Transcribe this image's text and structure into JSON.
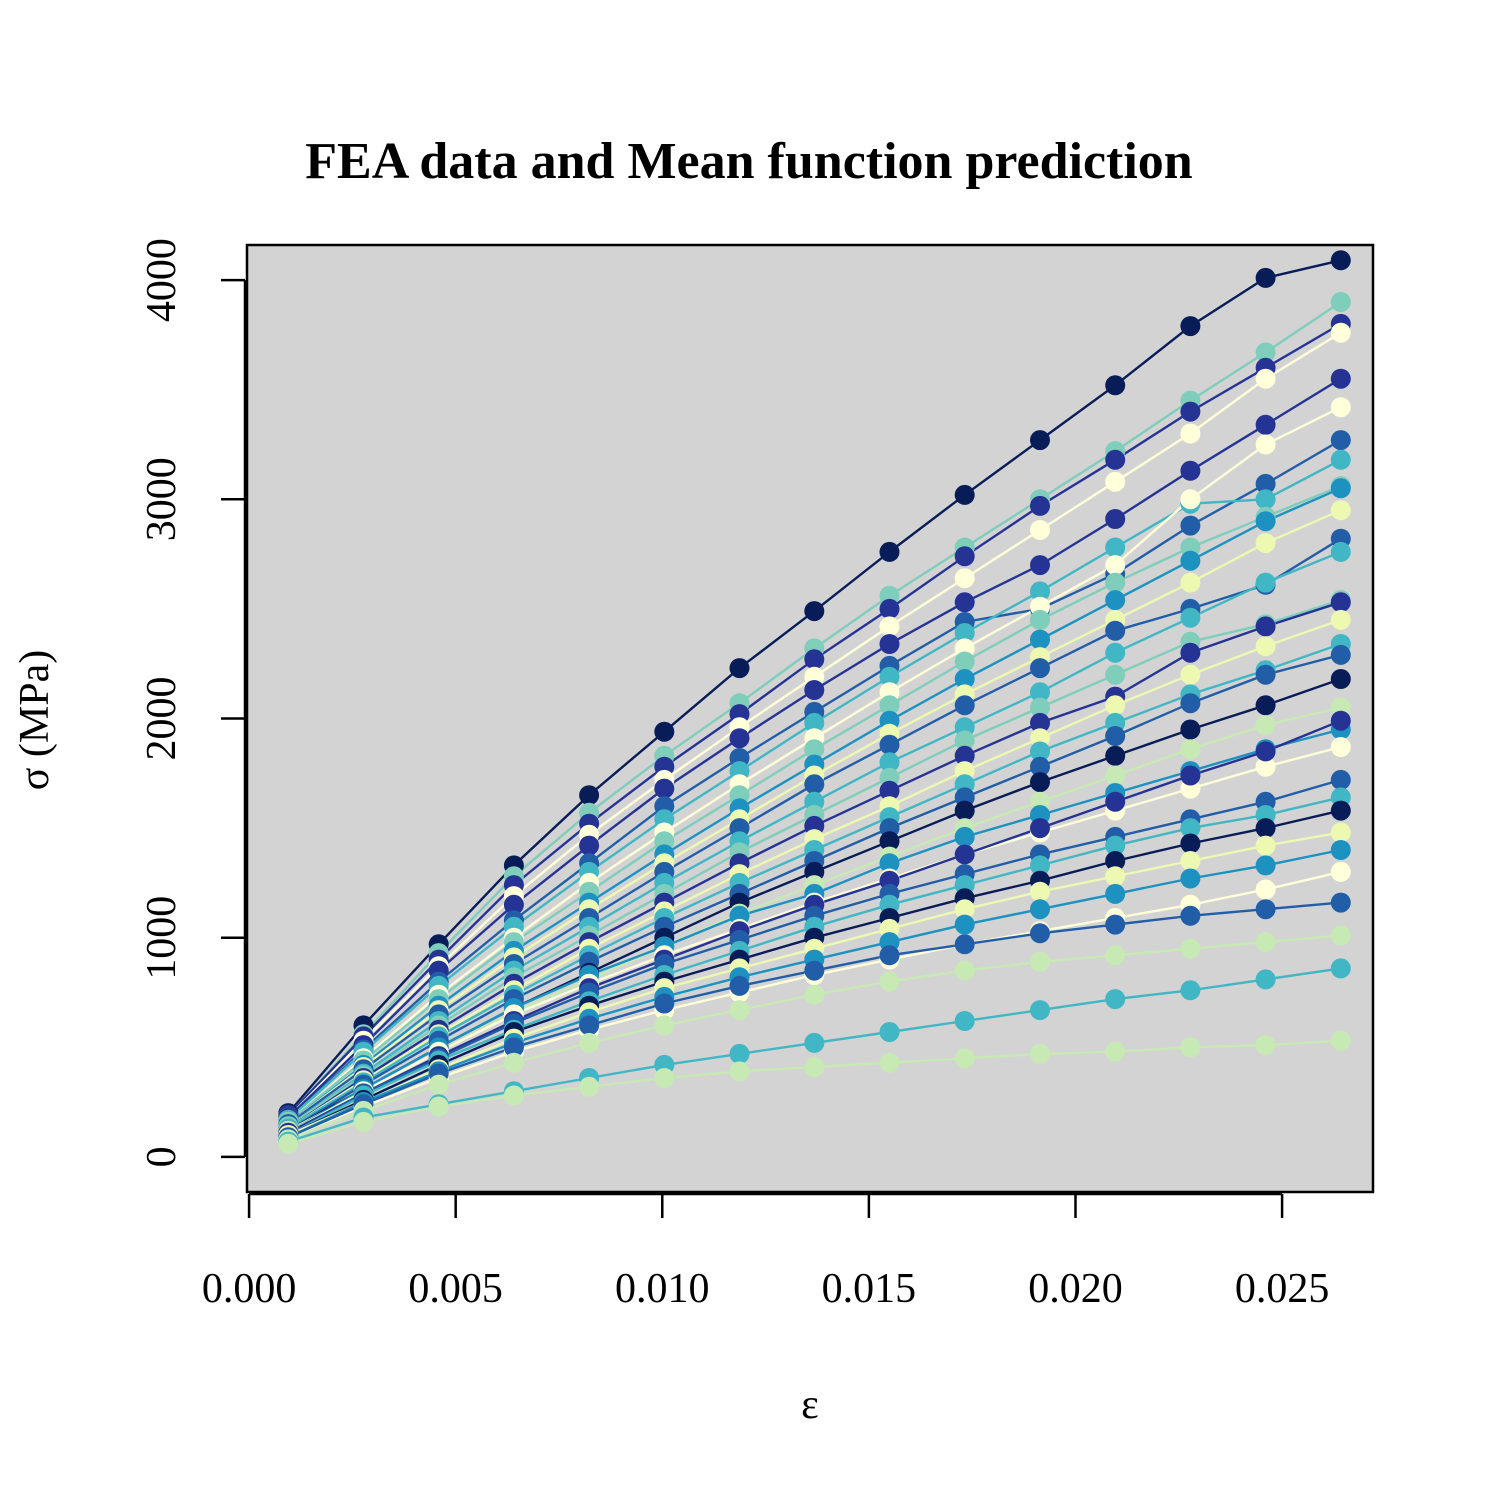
{
  "chart_data": {
    "type": "scatter",
    "title": "FEA data and Mean function prediction",
    "xlabel": "ε",
    "ylabel": "σ  (MPa)",
    "xlim": [
      -5e-05,
      0.0272
    ],
    "ylim": [
      -160,
      4160
    ],
    "xticks": [
      "0.000",
      "0.005",
      "0.010",
      "0.015",
      "0.020",
      "0.025"
    ],
    "xtick_values": [
      0,
      0.005,
      0.01,
      0.015,
      0.02,
      0.025
    ],
    "yticks": [
      "0",
      "1000",
      "2000",
      "3000",
      "4000"
    ],
    "ytick_values": [
      0,
      1000,
      2000,
      3000,
      4000
    ],
    "plot_background": "#d3d3d3",
    "palette": [
      "#ffffd9",
      "#edf8b1",
      "#c7e9b4",
      "#7fcdbb",
      "#41b6c4",
      "#1d91c0",
      "#225ea8",
      "#253494",
      "#081d58"
    ],
    "x": [
      0.00095,
      0.00277,
      0.00459,
      0.00641,
      0.00823,
      0.01005,
      0.01187,
      0.01368,
      0.0155,
      0.01732,
      0.01914,
      0.02096,
      0.02278,
      0.0246,
      0.02642
    ],
    "grid": false,
    "legend": "none",
    "series": [
      {
        "color": "#081d58",
        "values": [
          200,
          600,
          970,
          1330,
          1650,
          1940,
          2230,
          2490,
          2760,
          3020,
          3270,
          3520,
          3790,
          4010,
          4090
        ]
      },
      {
        "color": "#7fcdbb",
        "values": [
          190,
          560,
          930,
          1280,
          1570,
          1830,
          2070,
          2320,
          2560,
          2780,
          3000,
          3220,
          3450,
          3670,
          3900
        ]
      },
      {
        "color": "#253494",
        "values": [
          190,
          550,
          900,
          1240,
          1520,
          1780,
          2020,
          2270,
          2500,
          2740,
          2970,
          3180,
          3400,
          3600,
          3800
        ]
      },
      {
        "color": "#ffffd9",
        "values": [
          180,
          530,
          870,
          1190,
          1470,
          1720,
          1960,
          2190,
          2420,
          2640,
          2860,
          3080,
          3300,
          3550,
          3760
        ]
      },
      {
        "color": "#253494",
        "values": [
          180,
          510,
          850,
          1150,
          1420,
          1680,
          1910,
          2130,
          2340,
          2530,
          2700,
          2910,
          3130,
          3340,
          3550
        ]
      },
      {
        "color": "#225ea8",
        "values": [
          170,
          490,
          800,
          1080,
          1340,
          1600,
          1820,
          2030,
          2240,
          2440,
          2500,
          2660,
          2880,
          3070,
          3270
        ]
      },
      {
        "color": "#41b6c4",
        "values": [
          170,
          480,
          780,
          1050,
          1300,
          1540,
          1760,
          1980,
          2190,
          2390,
          2580,
          2780,
          2980,
          3000,
          3180
        ]
      },
      {
        "color": "#ffffd9",
        "values": [
          160,
          450,
          740,
          1000,
          1250,
          1480,
          1700,
          1910,
          2120,
          2320,
          2510,
          2700,
          3000,
          3250,
          3420
        ]
      },
      {
        "color": "#7fcdbb",
        "values": [
          160,
          440,
          720,
          980,
          1210,
          1440,
          1650,
          1860,
          2060,
          2260,
          2450,
          2620,
          2780,
          2920,
          3060
        ]
      },
      {
        "color": "#1d91c0",
        "values": [
          150,
          420,
          690,
          940,
          1160,
          1380,
          1590,
          1790,
          1990,
          2180,
          2360,
          2540,
          2720,
          2900,
          3050
        ]
      },
      {
        "color": "#edf8b1",
        "values": [
          150,
          410,
          670,
          910,
          1130,
          1340,
          1540,
          1740,
          1930,
          2110,
          2280,
          2450,
          2620,
          2800,
          2950
        ]
      },
      {
        "color": "#225ea8",
        "values": [
          150,
          400,
          650,
          880,
          1090,
          1300,
          1500,
          1700,
          1880,
          2060,
          2230,
          2400,
          2500,
          2610,
          2820
        ]
      },
      {
        "color": "#41b6c4",
        "values": [
          140,
          380,
          620,
          850,
          1050,
          1250,
          1440,
          1620,
          1800,
          1960,
          2120,
          2300,
          2460,
          2620,
          2760
        ]
      },
      {
        "color": "#7fcdbb",
        "values": [
          140,
          370,
          600,
          820,
          1010,
          1200,
          1390,
          1560,
          1730,
          1900,
          2050,
          2200,
          2350,
          2430,
          2540
        ]
      },
      {
        "color": "#253494",
        "values": [
          130,
          360,
          580,
          790,
          980,
          1160,
          1340,
          1510,
          1670,
          1830,
          1980,
          2100,
          2300,
          2420,
          2530
        ]
      },
      {
        "color": "#edf8b1",
        "values": [
          130,
          350,
          560,
          760,
          950,
          1120,
          1290,
          1450,
          1600,
          1760,
          1910,
          2060,
          2200,
          2330,
          2450
        ]
      },
      {
        "color": "#41b6c4",
        "values": [
          130,
          340,
          550,
          740,
          920,
          1090,
          1250,
          1400,
          1550,
          1700,
          1850,
          1980,
          2110,
          2220,
          2340
        ]
      },
      {
        "color": "#225ea8",
        "values": [
          120,
          330,
          530,
          720,
          890,
          1050,
          1200,
          1350,
          1500,
          1640,
          1780,
          1920,
          2070,
          2200,
          2290
        ]
      },
      {
        "color": "#081d58",
        "values": [
          120,
          310,
          500,
          680,
          840,
          1000,
          1160,
          1300,
          1440,
          1580,
          1710,
          1830,
          1950,
          2060,
          2180
        ]
      },
      {
        "color": "#c7e9b4",
        "values": [
          120,
          300,
          480,
          660,
          810,
          960,
          1110,
          1240,
          1370,
          1500,
          1620,
          1740,
          1860,
          1970,
          2050
        ]
      },
      {
        "color": "#1d91c0",
        "values": [
          110,
          310,
          500,
          680,
          830,
          960,
          1100,
          1200,
          1340,
          1460,
          1560,
          1660,
          1760,
          1860,
          1950
        ]
      },
      {
        "color": "#ffffd9",
        "values": [
          110,
          300,
          480,
          650,
          790,
          920,
          1040,
          1160,
          1270,
          1380,
          1480,
          1580,
          1680,
          1780,
          1870
        ]
      },
      {
        "color": "#253494",
        "values": [
          110,
          290,
          460,
          620,
          770,
          900,
          1030,
          1150,
          1260,
          1380,
          1500,
          1620,
          1740,
          1850,
          1990
        ]
      },
      {
        "color": "#225ea8",
        "values": [
          100,
          290,
          450,
          610,
          750,
          880,
          990,
          1100,
          1200,
          1290,
          1380,
          1460,
          1540,
          1620,
          1720
        ]
      },
      {
        "color": "#41b6c4",
        "values": [
          100,
          280,
          440,
          580,
          710,
          830,
          940,
          1050,
          1150,
          1240,
          1330,
          1420,
          1500,
          1560,
          1640
        ]
      },
      {
        "color": "#081d58",
        "values": [
          100,
          260,
          420,
          570,
          690,
          800,
          900,
          1000,
          1090,
          1180,
          1260,
          1350,
          1430,
          1500,
          1580
        ]
      },
      {
        "color": "#edf8b1",
        "values": [
          100,
          250,
          400,
          540,
          660,
          770,
          860,
          950,
          1040,
          1130,
          1210,
          1280,
          1350,
          1420,
          1480
        ]
      },
      {
        "color": "#1d91c0",
        "values": [
          90,
          250,
          390,
          520,
          630,
          730,
          820,
          900,
          980,
          1060,
          1130,
          1200,
          1270,
          1330,
          1400
        ]
      },
      {
        "color": "#ffffd9",
        "values": [
          90,
          230,
          360,
          480,
          580,
          670,
          750,
          830,
          900,
          970,
          1030,
          1090,
          1150,
          1220,
          1300
        ]
      },
      {
        "color": "#225ea8",
        "values": [
          90,
          240,
          380,
          500,
          600,
          700,
          780,
          850,
          920,
          970,
          1020,
          1060,
          1100,
          1130,
          1160
        ]
      },
      {
        "color": "#c7e9b4",
        "values": [
          80,
          210,
          330,
          430,
          520,
          600,
          670,
          740,
          800,
          850,
          890,
          920,
          950,
          980,
          1010
        ]
      },
      {
        "color": "#41b6c4",
        "values": [
          70,
          180,
          240,
          300,
          360,
          420,
          470,
          520,
          570,
          620,
          670,
          720,
          760,
          810,
          860
        ]
      },
      {
        "color": "#c7e9b4",
        "values": [
          60,
          160,
          230,
          280,
          320,
          360,
          390,
          410,
          430,
          450,
          470,
          480,
          500,
          510,
          530
        ]
      }
    ]
  }
}
